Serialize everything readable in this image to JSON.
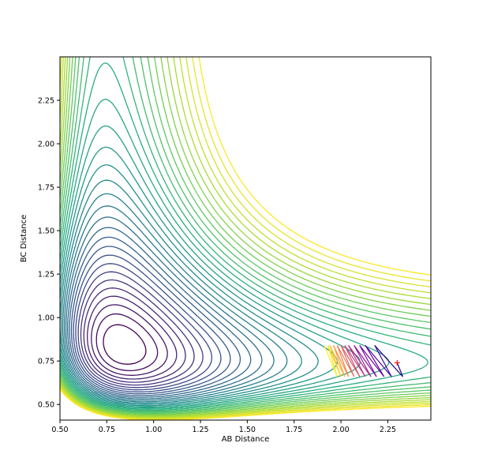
{
  "chart_data": {
    "type": "contour",
    "title": "",
    "xlabel": "AB Distance",
    "ylabel": "BC Distance",
    "xlim": [
      0.5,
      2.48
    ],
    "ylim": [
      0.41,
      2.5
    ],
    "xticks": [
      0.5,
      0.75,
      1.0,
      1.25,
      1.5,
      1.75,
      2.0,
      2.25
    ],
    "xtick_labels": [
      "0.50",
      "0.75",
      "1.00",
      "1.25",
      "1.50",
      "1.75",
      "2.00",
      "2.25"
    ],
    "yticks": [
      0.5,
      0.75,
      1.0,
      1.25,
      1.5,
      1.75,
      2.0,
      2.25
    ],
    "ytick_labels": [
      "0.50",
      "0.75",
      "1.00",
      "1.25",
      "1.50",
      "1.75",
      "2.00",
      "2.25"
    ],
    "grid": false,
    "colormap": "viridis",
    "surface": {
      "min_energy": 0.0,
      "well_ab": 0.74,
      "well_bc": 0.74,
      "contour_levels": [
        0.15,
        0.3,
        0.45,
        0.6,
        0.75,
        0.9,
        1.05,
        1.2,
        1.35,
        1.5,
        1.65,
        1.8,
        1.95,
        2.1,
        2.25,
        2.4,
        2.55,
        2.7,
        2.85,
        3.0,
        3.15,
        3.3,
        3.45,
        3.6,
        3.75,
        3.9,
        4.05,
        4.2,
        4.35,
        4.5,
        4.65,
        4.8,
        4.95
      ]
    },
    "trajectory": {
      "name": "",
      "colormap": "plasma",
      "x": [
        2.3,
        2.33,
        2.18,
        2.27,
        2.13,
        2.23,
        2.1,
        2.19,
        2.07,
        2.16,
        2.04,
        2.13,
        2.02,
        2.1,
        2.0,
        2.07,
        1.98,
        2.04,
        1.96,
        2.02,
        1.94,
        2.0,
        1.93,
        1.98,
        1.91
      ],
      "y": [
        0.74,
        0.66,
        0.84,
        0.66,
        0.84,
        0.66,
        0.84,
        0.66,
        0.84,
        0.66,
        0.84,
        0.66,
        0.84,
        0.66,
        0.84,
        0.66,
        0.84,
        0.66,
        0.84,
        0.66,
        0.84,
        0.66,
        0.84,
        0.66,
        0.84
      ]
    },
    "start_marker": {
      "x": 2.3,
      "y": 0.74,
      "symbol": "+",
      "color": "#e8181a"
    }
  }
}
